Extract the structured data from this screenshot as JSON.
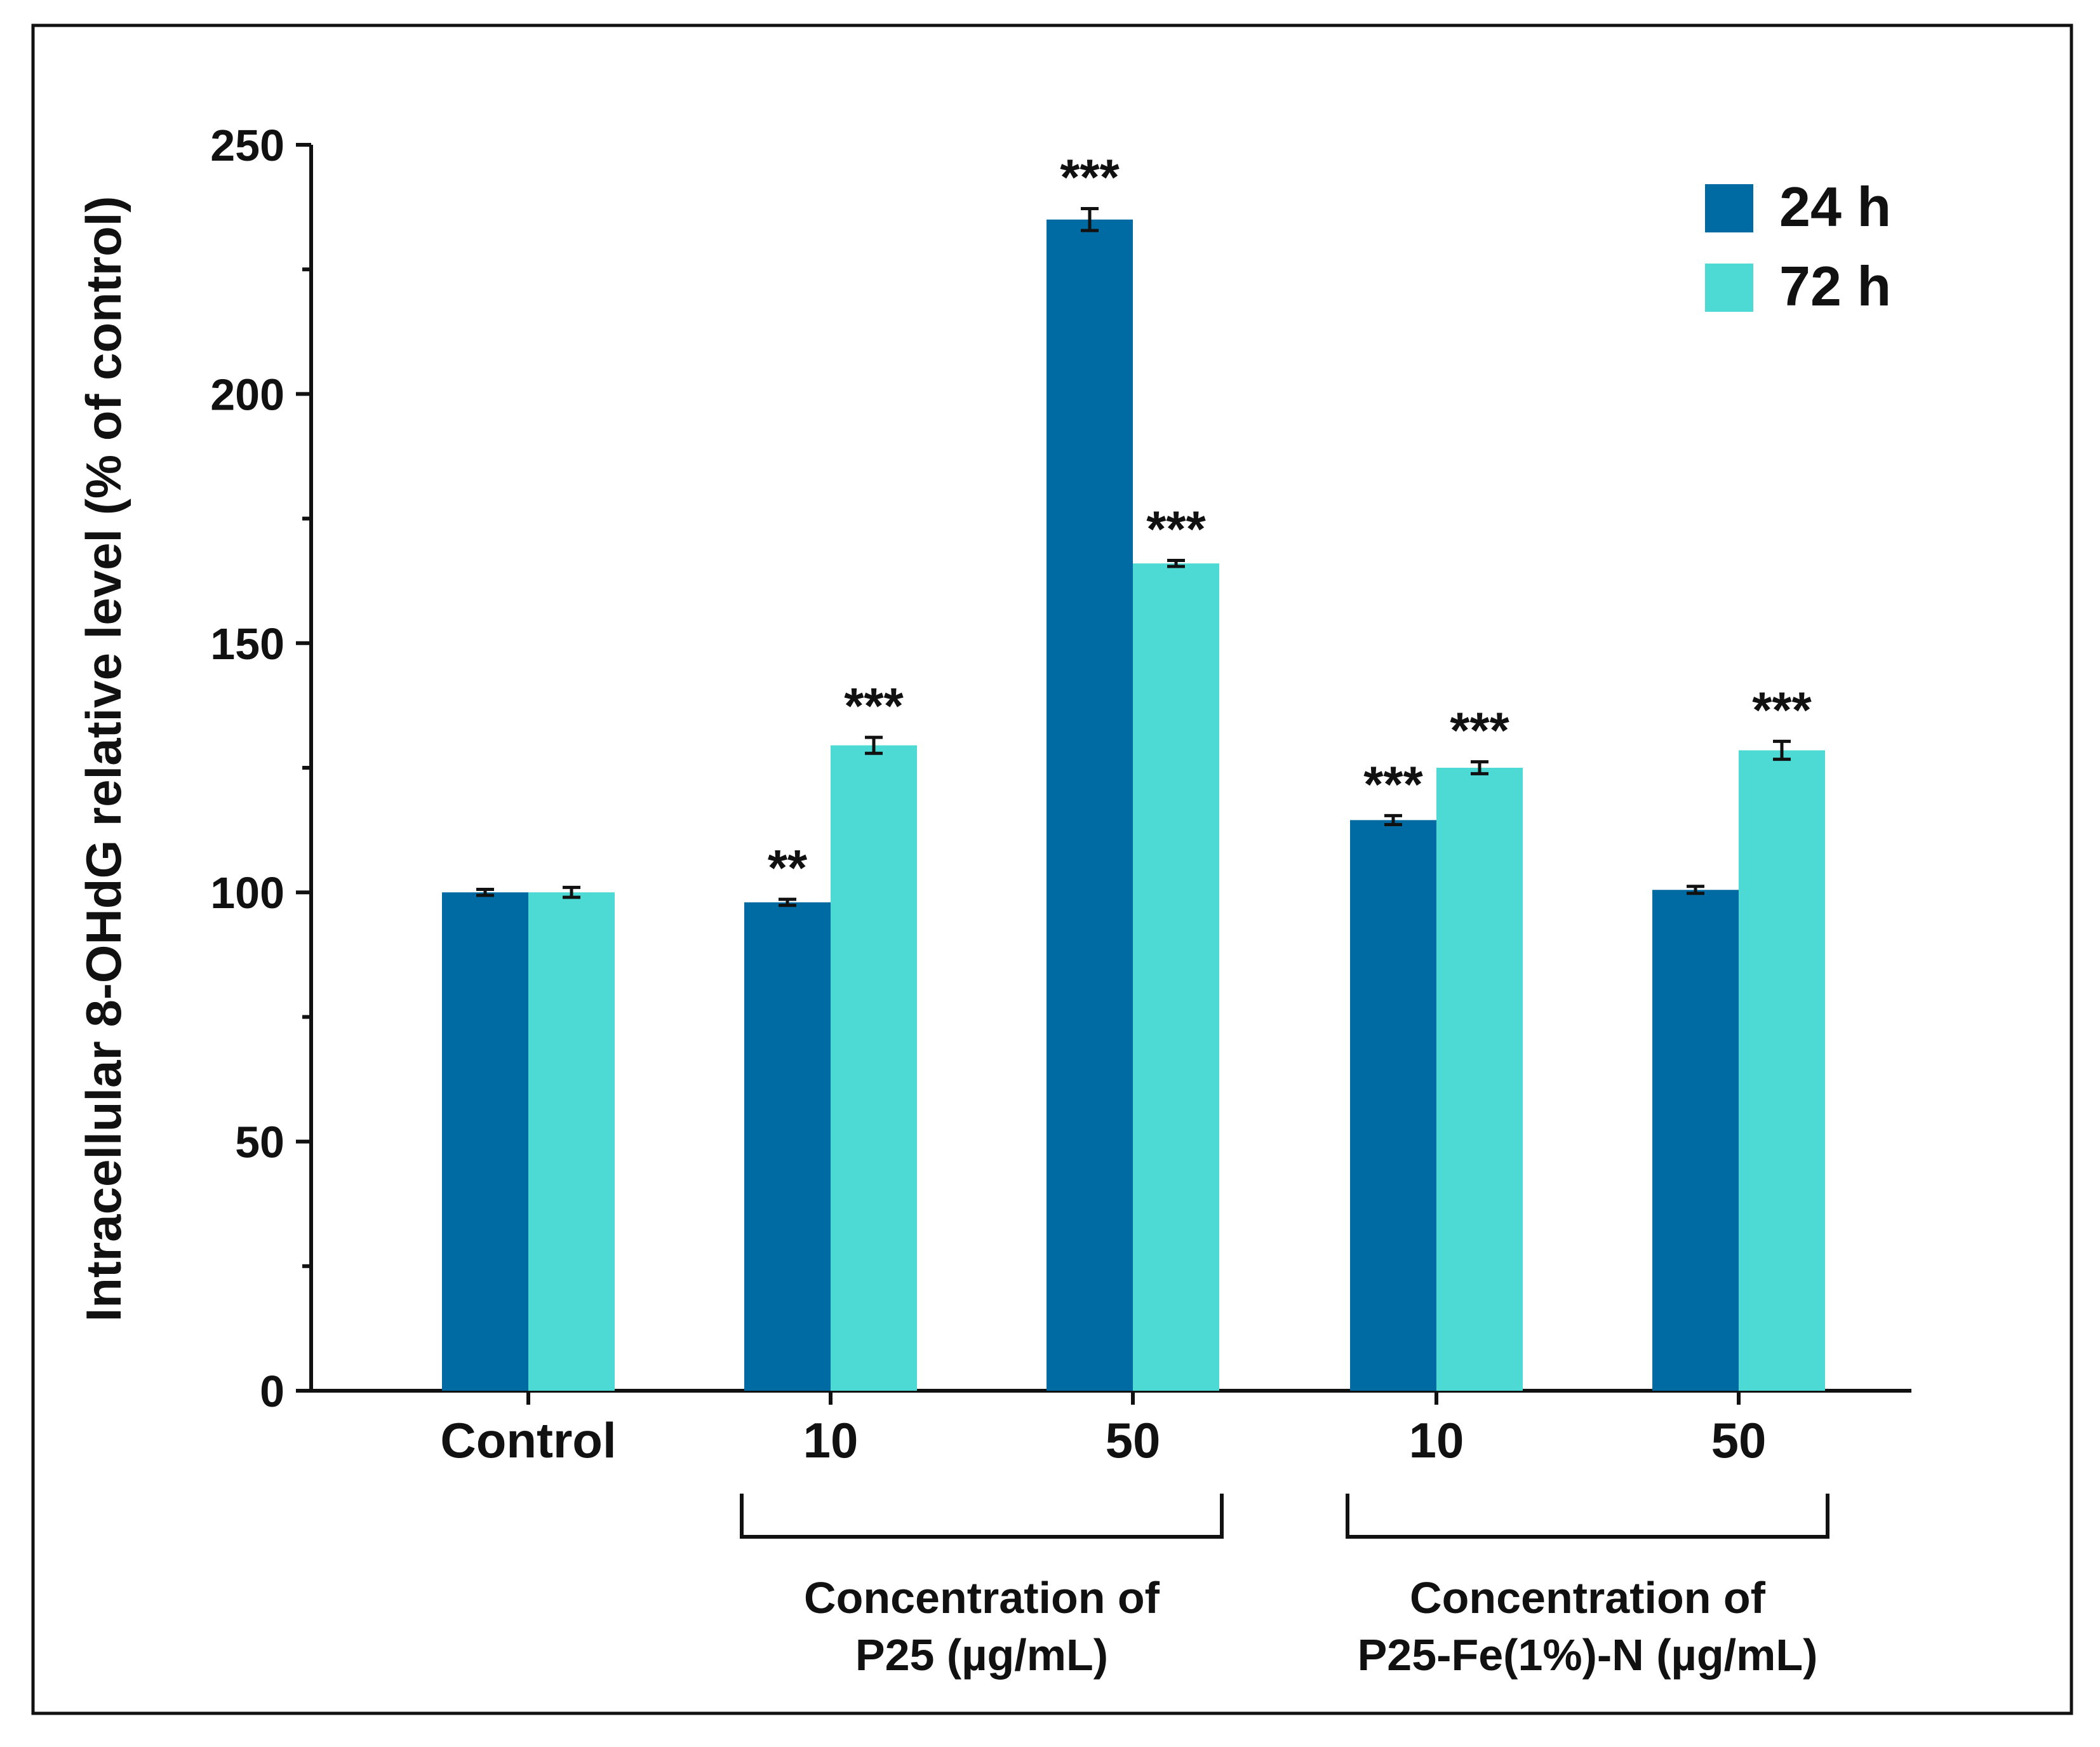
{
  "chart_data": {
    "type": "bar",
    "title": "",
    "xlabel": "",
    "ylabel": "Intracellular 8-OHdG relative level (% of control)",
    "ylim": [
      0,
      250
    ],
    "yticks": [
      0,
      50,
      100,
      150,
      200,
      250
    ],
    "categories": [
      "Control",
      "10",
      "50",
      "10",
      "50"
    ],
    "groups": [
      {
        "label_line1": "Concentration of",
        "label_line2": "P25 (µg/mL)",
        "categories": [
          1,
          2
        ]
      },
      {
        "label_line1": "Concentration of",
        "label_line2": "P25-Fe(1%)-N (µg/mL)",
        "categories": [
          3,
          4
        ]
      }
    ],
    "series": [
      {
        "name": "24 h",
        "color": "#006aa3",
        "values": [
          100,
          98,
          235,
          114.5,
          100.5
        ],
        "errors": [
          0.6,
          0.6,
          2.2,
          0.9,
          0.7
        ],
        "significance": [
          "",
          "**",
          "***",
          "***",
          ""
        ]
      },
      {
        "name": "72 h",
        "color": "#4dd9d4",
        "values": [
          100,
          129.5,
          166,
          125,
          128.5
        ],
        "errors": [
          1.0,
          1.6,
          0.6,
          1.2,
          1.8
        ],
        "significance": [
          "",
          "***",
          "***",
          "***",
          "***"
        ]
      }
    ],
    "legend": {
      "position": "top-right"
    },
    "grid": false
  }
}
